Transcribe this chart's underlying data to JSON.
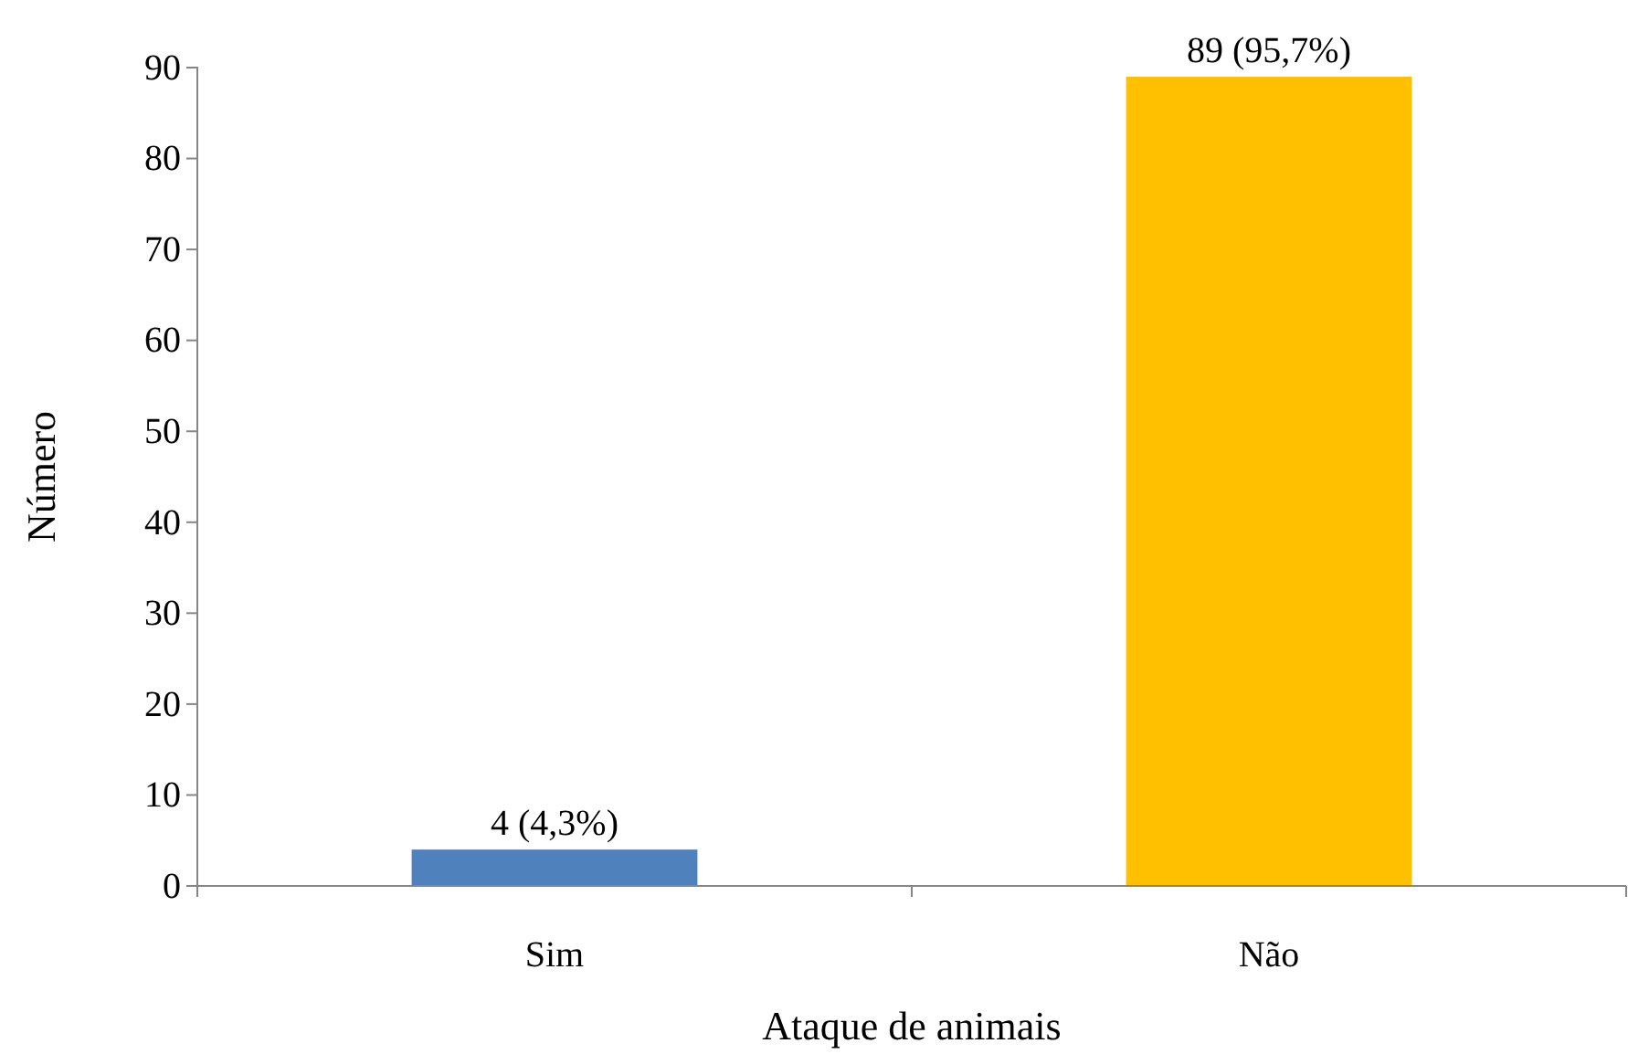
{
  "chart_data": {
    "type": "bar",
    "xlabel": "Ataque de animais",
    "ylabel": "Número",
    "categories": [
      "Sim",
      "Não"
    ],
    "values": [
      4,
      89
    ],
    "colors": [
      "#4f81bd",
      "#ffc000"
    ],
    "value_labels": [
      "4 (4,3%)",
      "89 (95,7%)"
    ],
    "ylim": [
      0,
      90
    ],
    "yticks": [
      0,
      10,
      20,
      30,
      40,
      50,
      60,
      70,
      80,
      90
    ],
    "grid": false
  }
}
